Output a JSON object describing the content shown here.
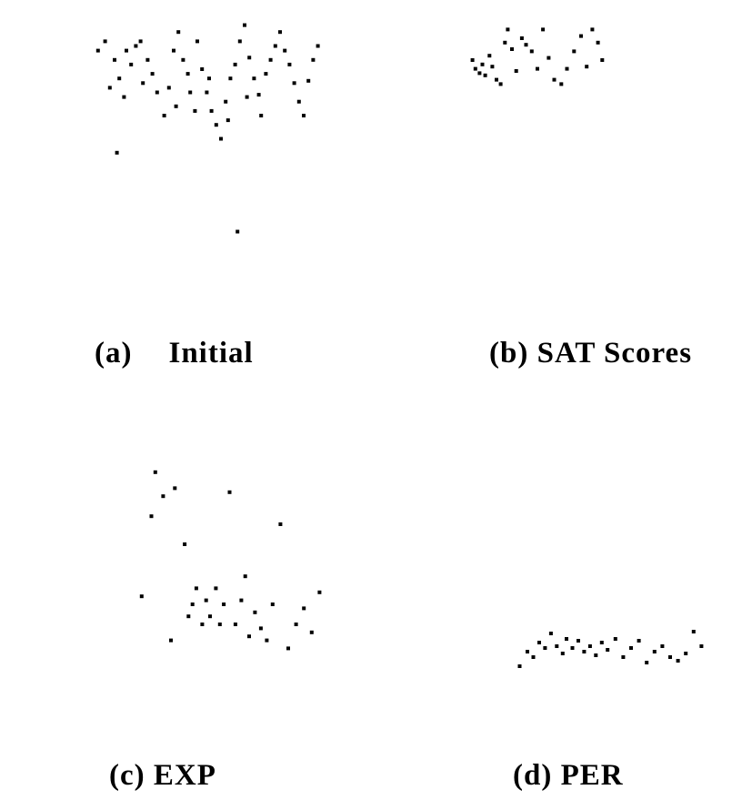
{
  "chart_data": [
    {
      "type": "scatter",
      "caption_label": "(a)",
      "caption_title": "Initial",
      "xlim": [
        0,
        1
      ],
      "ylim": [
        0,
        1
      ],
      "points": [
        [
          0.03,
          0.88
        ],
        [
          0.06,
          0.92
        ],
        [
          0.1,
          0.84
        ],
        [
          0.12,
          0.76
        ],
        [
          0.15,
          0.88
        ],
        [
          0.17,
          0.82
        ],
        [
          0.19,
          0.9
        ],
        [
          0.21,
          0.92
        ],
        [
          0.24,
          0.84
        ],
        [
          0.26,
          0.78
        ],
        [
          0.28,
          0.7
        ],
        [
          0.31,
          0.6
        ],
        [
          0.33,
          0.72
        ],
        [
          0.35,
          0.88
        ],
        [
          0.37,
          0.96
        ],
        [
          0.39,
          0.84
        ],
        [
          0.41,
          0.78
        ],
        [
          0.42,
          0.7
        ],
        [
          0.44,
          0.62
        ],
        [
          0.45,
          0.92
        ],
        [
          0.47,
          0.8
        ],
        [
          0.49,
          0.7
        ],
        [
          0.51,
          0.62
        ],
        [
          0.53,
          0.56
        ],
        [
          0.55,
          0.5
        ],
        [
          0.57,
          0.66
        ],
        [
          0.59,
          0.76
        ],
        [
          0.61,
          0.82
        ],
        [
          0.63,
          0.92
        ],
        [
          0.65,
          0.99
        ],
        [
          0.67,
          0.85
        ],
        [
          0.69,
          0.76
        ],
        [
          0.71,
          0.69
        ],
        [
          0.72,
          0.6
        ],
        [
          0.74,
          0.78
        ],
        [
          0.76,
          0.84
        ],
        [
          0.78,
          0.9
        ],
        [
          0.8,
          0.96
        ],
        [
          0.82,
          0.88
        ],
        [
          0.84,
          0.82
        ],
        [
          0.86,
          0.74
        ],
        [
          0.88,
          0.66
        ],
        [
          0.9,
          0.6
        ],
        [
          0.92,
          0.75
        ],
        [
          0.94,
          0.84
        ],
        [
          0.96,
          0.9
        ],
        [
          0.08,
          0.72
        ],
        [
          0.14,
          0.68
        ],
        [
          0.22,
          0.74
        ],
        [
          0.36,
          0.64
        ],
        [
          0.5,
          0.76
        ],
        [
          0.58,
          0.58
        ],
        [
          0.66,
          0.68
        ],
        [
          0.11,
          0.44
        ],
        [
          0.62,
          0.1
        ]
      ]
    },
    {
      "type": "scatter",
      "caption_label": "(b)",
      "caption_title": "SAT Scores",
      "xlim": [
        0,
        1
      ],
      "ylim": [
        0,
        1
      ],
      "points": [
        [
          0.03,
          0.7
        ],
        [
          0.05,
          0.62
        ],
        [
          0.08,
          0.58
        ],
        [
          0.1,
          0.66
        ],
        [
          0.12,
          0.56
        ],
        [
          0.15,
          0.74
        ],
        [
          0.17,
          0.64
        ],
        [
          0.2,
          0.52
        ],
        [
          0.23,
          0.48
        ],
        [
          0.26,
          0.86
        ],
        [
          0.28,
          0.98
        ],
        [
          0.31,
          0.8
        ],
        [
          0.34,
          0.6
        ],
        [
          0.38,
          0.9
        ],
        [
          0.41,
          0.84
        ],
        [
          0.45,
          0.78
        ],
        [
          0.49,
          0.62
        ],
        [
          0.53,
          0.98
        ],
        [
          0.57,
          0.72
        ],
        [
          0.61,
          0.52
        ],
        [
          0.66,
          0.48
        ],
        [
          0.7,
          0.62
        ],
        [
          0.75,
          0.78
        ],
        [
          0.8,
          0.92
        ],
        [
          0.84,
          0.64
        ],
        [
          0.88,
          0.98
        ],
        [
          0.92,
          0.86
        ],
        [
          0.95,
          0.7
        ]
      ]
    },
    {
      "type": "scatter",
      "caption_label": "(c)",
      "caption_title": "EXP",
      "xlim": [
        0,
        1
      ],
      "ylim": [
        0,
        1
      ],
      "points": [
        [
          0.05,
          0.34
        ],
        [
          0.1,
          0.74
        ],
        [
          0.12,
          0.96
        ],
        [
          0.16,
          0.84
        ],
        [
          0.2,
          0.12
        ],
        [
          0.22,
          0.88
        ],
        [
          0.27,
          0.6
        ],
        [
          0.29,
          0.24
        ],
        [
          0.31,
          0.3
        ],
        [
          0.33,
          0.38
        ],
        [
          0.36,
          0.2
        ],
        [
          0.38,
          0.32
        ],
        [
          0.4,
          0.24
        ],
        [
          0.43,
          0.38
        ],
        [
          0.45,
          0.2
        ],
        [
          0.47,
          0.3
        ],
        [
          0.5,
          0.86
        ],
        [
          0.53,
          0.2
        ],
        [
          0.56,
          0.32
        ],
        [
          0.58,
          0.44
        ],
        [
          0.6,
          0.14
        ],
        [
          0.63,
          0.26
        ],
        [
          0.66,
          0.18
        ],
        [
          0.69,
          0.12
        ],
        [
          0.72,
          0.3
        ],
        [
          0.76,
          0.7
        ],
        [
          0.8,
          0.08
        ],
        [
          0.84,
          0.2
        ],
        [
          0.88,
          0.28
        ],
        [
          0.92,
          0.16
        ],
        [
          0.96,
          0.36
        ]
      ]
    },
    {
      "type": "scatter",
      "caption_label": "(d)",
      "caption_title": "PER",
      "xlim": [
        0,
        1
      ],
      "ylim": [
        0,
        1
      ],
      "points": [
        [
          0.03,
          0.08
        ],
        [
          0.07,
          0.24
        ],
        [
          0.1,
          0.18
        ],
        [
          0.13,
          0.34
        ],
        [
          0.16,
          0.28
        ],
        [
          0.19,
          0.44
        ],
        [
          0.22,
          0.3
        ],
        [
          0.25,
          0.22
        ],
        [
          0.27,
          0.38
        ],
        [
          0.3,
          0.28
        ],
        [
          0.33,
          0.36
        ],
        [
          0.36,
          0.24
        ],
        [
          0.39,
          0.3
        ],
        [
          0.42,
          0.2
        ],
        [
          0.45,
          0.34
        ],
        [
          0.48,
          0.26
        ],
        [
          0.52,
          0.38
        ],
        [
          0.56,
          0.18
        ],
        [
          0.6,
          0.28
        ],
        [
          0.64,
          0.36
        ],
        [
          0.68,
          0.12
        ],
        [
          0.72,
          0.24
        ],
        [
          0.76,
          0.3
        ],
        [
          0.8,
          0.18
        ],
        [
          0.84,
          0.14
        ],
        [
          0.88,
          0.22
        ],
        [
          0.92,
          0.46
        ],
        [
          0.96,
          0.3
        ]
      ]
    }
  ]
}
